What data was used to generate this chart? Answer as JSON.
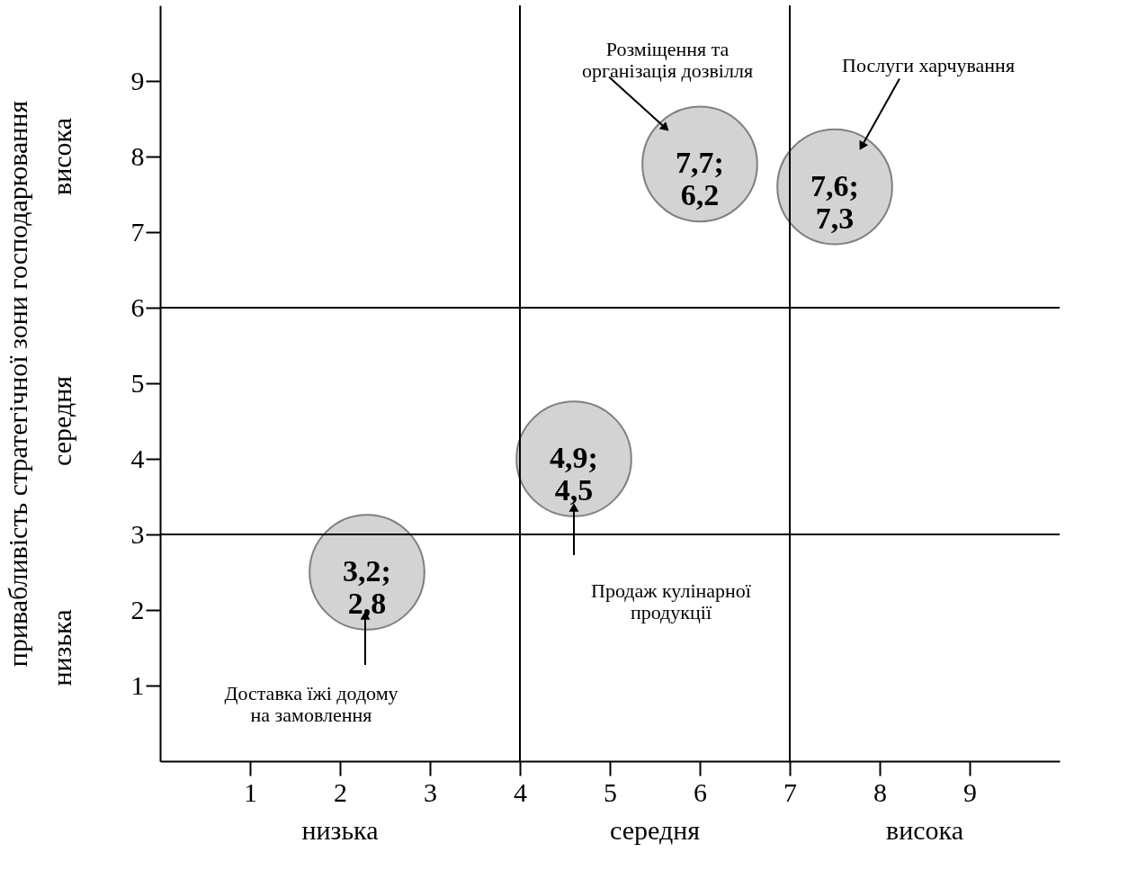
{
  "chart_data": {
    "type": "bubble",
    "ylabel": "привабливість стратегічної зони господарювання",
    "x": [
      6.0,
      7.5,
      4.6,
      2.3
    ],
    "values": [
      7.9,
      7.6,
      4.0,
      2.5
    ],
    "sizes": [
      1,
      1,
      1,
      1
    ],
    "color": "#d3d3d3",
    "value_labels": [
      "7,7;\n6,2",
      "7,6;\n7,3",
      "4,9;\n4,5",
      "3,2;\n2,8"
    ],
    "xlim": [
      0,
      10
    ],
    "ylim": [
      0,
      10
    ],
    "xticks": [
      1,
      2,
      3,
      4,
      5,
      6,
      7,
      8,
      9
    ],
    "yticks": [
      1,
      2,
      3,
      4,
      5,
      6,
      7,
      8,
      9
    ],
    "ref_lines": [
      {
        "axis": "x",
        "value": 4
      },
      {
        "axis": "x",
        "value": 7
      },
      {
        "axis": "y",
        "value": 3
      },
      {
        "axis": "y",
        "value": 6
      }
    ],
    "annotations": [
      "низька",
      "середня",
      "висока",
      "низька",
      "середня",
      "висока",
      "Розміщення та\nорганізація дозвілля",
      "Послуги харчування",
      "Продаж кулінарної\nпродукції",
      "Доставка їжі додому\nна замовлення"
    ],
    "grid": false
  }
}
